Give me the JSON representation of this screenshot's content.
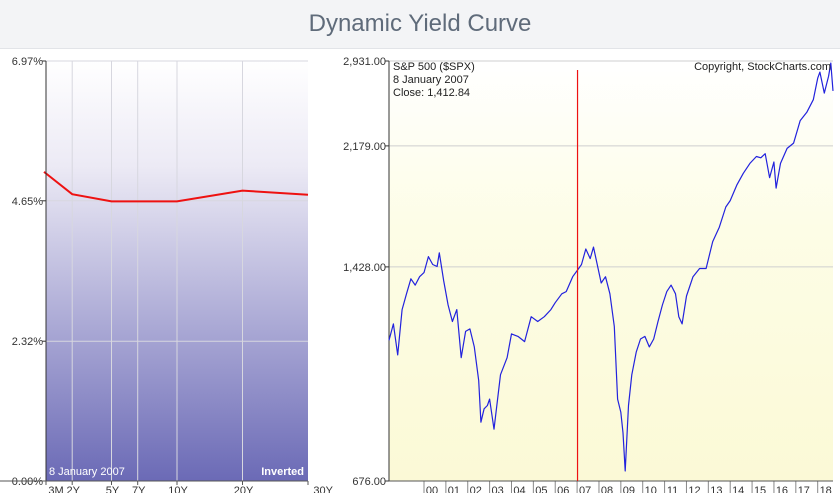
{
  "page_title": "Dynamic Yield Curve",
  "chart_data": [
    {
      "type": "line",
      "name": "yield-curve",
      "date_label": "8  January 2007",
      "status_label": "Inverted",
      "categories": [
        "3M",
        "2Y",
        "5Y",
        "7Y",
        "10Y",
        "20Y",
        "30Y"
      ],
      "category_maturity_years": [
        0.25,
        2,
        5,
        7,
        10,
        20,
        30
      ],
      "category_positions": [
        0,
        0.1,
        0.25,
        0.35,
        0.5,
        0.75,
        1
      ],
      "values": [
        5.13,
        4.76,
        4.64,
        4.64,
        4.64,
        4.82,
        4.75
      ],
      "y_ticks": [
        {
          "label": "6.97%",
          "value": 6.97
        },
        {
          "label": "4.65%",
          "value": 4.65
        },
        {
          "label": "2.32%",
          "value": 2.32
        },
        {
          "label": "0.00%",
          "value": 0
        }
      ],
      "ylim": [
        0,
        6.97
      ],
      "line_color": "#ee1111",
      "grid": true
    },
    {
      "type": "line",
      "name": "sp500",
      "title": "S&P 500 ($SPX)",
      "copyright": "Copyright, StockCharts.com",
      "cursor": {
        "date_label": "8  January 2007",
        "close_label": "Close: 1,412.84",
        "x": 2007.02
      },
      "y_ticks": [
        {
          "label": "2,931.00",
          "value": 2931
        },
        {
          "label": "2,179.00",
          "value": 2179
        },
        {
          "label": "1,428.00",
          "value": 1428
        },
        {
          "label": "676.00",
          "value": 676
        }
      ],
      "ylim": [
        676,
        2931
      ],
      "y_scale": "log",
      "x_ticks": [
        {
          "label": "00",
          "value": 2000
        },
        {
          "label": "01",
          "value": 2001
        },
        {
          "label": "02",
          "value": 2002
        },
        {
          "label": "03",
          "value": 2003
        },
        {
          "label": "04",
          "value": 2004
        },
        {
          "label": "05",
          "value": 2005
        },
        {
          "label": "06",
          "value": 2006
        },
        {
          "label": "07",
          "value": 2007
        },
        {
          "label": "08",
          "value": 2008
        },
        {
          "label": "09",
          "value": 2009
        },
        {
          "label": "10",
          "value": 2010
        },
        {
          "label": "11",
          "value": 2011
        },
        {
          "label": "12",
          "value": 2012
        },
        {
          "label": "13",
          "value": 2013
        },
        {
          "label": "14",
          "value": 2014
        },
        {
          "label": "15",
          "value": 2015
        },
        {
          "label": "16",
          "value": 2016
        },
        {
          "label": "17",
          "value": 2017
        },
        {
          "label": "18",
          "value": 2018
        }
      ],
      "xlim": [
        1998.4,
        2018.7
      ],
      "line_color": "#2222dd",
      "cursor_color": "#ee1111",
      "series": [
        {
          "x": [
            1998.4,
            1998.6,
            1998.8,
            1999.0,
            1999.2,
            1999.4,
            1999.6,
            1999.8,
            2000.0,
            2000.2,
            2000.4,
            2000.6,
            2000.7,
            2000.9,
            2001.1,
            2001.3,
            2001.5,
            2001.7,
            2001.9,
            2002.1,
            2002.3,
            2002.5,
            2002.6,
            2002.75,
            2002.9,
            2003.0,
            2003.2,
            2003.5,
            2003.8,
            2004.0,
            2004.3,
            2004.6,
            2004.9,
            2005.2,
            2005.5,
            2005.8,
            2006.0,
            2006.3,
            2006.5,
            2006.8,
            2007.02,
            2007.2,
            2007.4,
            2007.6,
            2007.75,
            2007.9,
            2008.1,
            2008.3,
            2008.5,
            2008.7,
            2008.85,
            2009.0,
            2009.1,
            2009.2,
            2009.35,
            2009.5,
            2009.7,
            2009.9,
            2010.1,
            2010.3,
            2010.5,
            2010.7,
            2010.9,
            2011.1,
            2011.3,
            2011.5,
            2011.65,
            2011.8,
            2012.0,
            2012.3,
            2012.6,
            2012.9,
            2013.2,
            2013.5,
            2013.8,
            2014.0,
            2014.3,
            2014.6,
            2014.9,
            2015.2,
            2015.4,
            2015.6,
            2015.8,
            2016.0,
            2016.1,
            2016.3,
            2016.6,
            2016.9,
            2017.2,
            2017.5,
            2017.8,
            2018.0,
            2018.1,
            2018.3,
            2018.5,
            2018.6,
            2018.7
          ],
          "values": [
            1105,
            1170,
            1050,
            1230,
            1300,
            1370,
            1340,
            1380,
            1400,
            1480,
            1440,
            1430,
            1500,
            1360,
            1250,
            1180,
            1230,
            1040,
            1140,
            1150,
            1080,
            960,
            830,
            870,
            880,
            900,
            810,
            980,
            1040,
            1130,
            1120,
            1100,
            1200,
            1180,
            1200,
            1230,
            1260,
            1300,
            1310,
            1380,
            1412,
            1440,
            1520,
            1470,
            1530,
            1450,
            1350,
            1380,
            1300,
            1160,
            900,
            860,
            800,
            700,
            880,
            980,
            1060,
            1110,
            1120,
            1080,
            1110,
            1180,
            1250,
            1310,
            1340,
            1300,
            1200,
            1170,
            1290,
            1380,
            1420,
            1420,
            1560,
            1640,
            1760,
            1800,
            1900,
            1980,
            2050,
            2100,
            2090,
            2120,
            1950,
            2060,
            1880,
            2050,
            2160,
            2200,
            2380,
            2450,
            2560,
            2760,
            2820,
            2620,
            2780,
            2910,
            2640
          ]
        }
      ],
      "grid": true
    }
  ]
}
